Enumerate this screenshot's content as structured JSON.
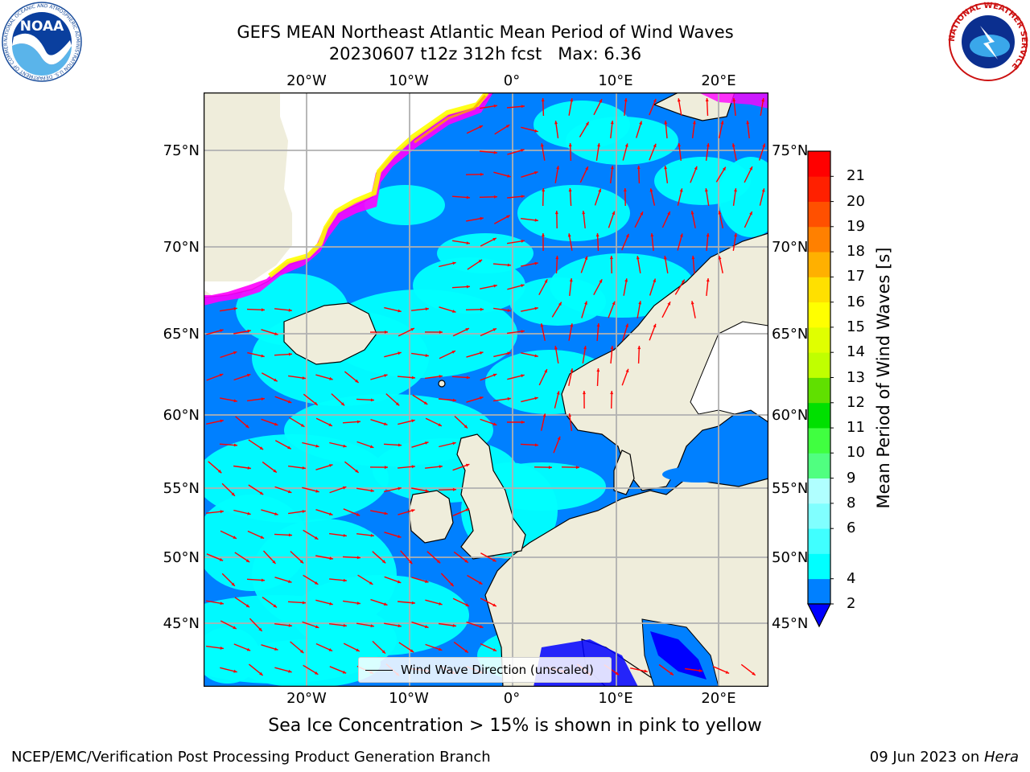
{
  "header": {
    "title_line1": "GEFS MEAN Northeast Atlantic Mean Period of Wind Waves",
    "title_line2": "20230607 t12z 312h fcst   Max: 6.36"
  },
  "logos": {
    "noara_text": "NOAA",
    "noaa_ring_text": "NATIONAL OCEANIC AND ATMOSPHERIC ADMINISTRATION U.S. DEPARTMENT OF COMMERCE",
    "nws_ring_text": "NATIONAL WEATHER SERVICE"
  },
  "map": {
    "lon_labels": [
      "20°W",
      "10°W",
      "0°",
      "10°E",
      "20°E"
    ],
    "lat_labels": [
      "75°N",
      "70°N",
      "65°N",
      "60°N",
      "55°N",
      "50°N",
      "45°N"
    ],
    "legend_label": "Wind Wave Direction (unscaled)",
    "colors": {
      "land": "#efeddb",
      "ice_white": "#ffffff",
      "below_2": "#0000ff",
      "period_2_4": "#0080ff",
      "period_4_6": "#00ffff",
      "arrows": "#ff0000",
      "grid": "#b0b0b0",
      "ice_pink": "#ff00ff",
      "ice_yellow": "#ffff00",
      "ice_orange": "#ffa500"
    }
  },
  "colorbar": {
    "title": "Mean Period of Wind Waves [s]",
    "ticks": [
      "2",
      "4",
      "6",
      "8",
      "9",
      "10",
      "11",
      "12",
      "13",
      "14",
      "15",
      "16",
      "17",
      "18",
      "19",
      "20",
      "21"
    ],
    "bins": [
      "#0080ff",
      "#00ffff",
      "#40ffff",
      "#80ffff",
      "#b0ffff",
      "#50ff80",
      "#40ff40",
      "#00e000",
      "#60e000",
      "#c0ff00",
      "#e0ff00",
      "#ffff00",
      "#ffe000",
      "#ffb000",
      "#ff8000",
      "#ff5000",
      "#ff2000",
      "#ff0000"
    ],
    "under_color": "#0000ff"
  },
  "caption": "Sea Ice Concentration > 15% is shown in pink to yellow",
  "footer": {
    "left": "NCEP/EMC/Verification Post Processing Product Generation Branch",
    "right_date": "09 Jun 2023 on ",
    "right_host": "Hera"
  }
}
